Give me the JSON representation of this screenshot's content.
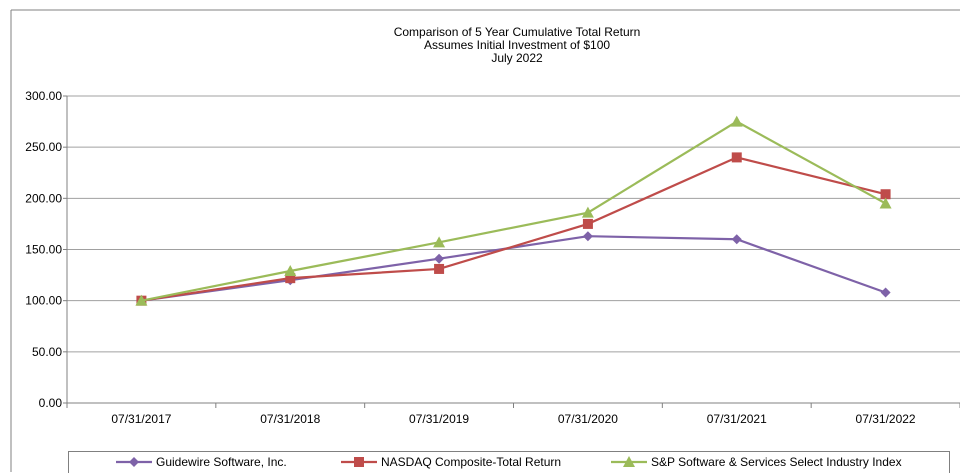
{
  "chart_data": {
    "type": "line",
    "title": [
      "Comparison of 5 Year Cumulative Total Return",
      "Assumes Initial Investment of $100",
      "July 2022"
    ],
    "xlabel": "",
    "ylabel": "",
    "categories": [
      "07/31/2017",
      "07/31/2018",
      "07/31/2019",
      "07/31/2020",
      "07/31/2021",
      "07/31/2022"
    ],
    "ylim": [
      0,
      300
    ],
    "yticks": [
      "0.00",
      "50.00",
      "100.00",
      "150.00",
      "200.00",
      "250.00",
      "300.00"
    ],
    "grid": true,
    "legend_position": "bottom",
    "series": [
      {
        "name": "Guidewire Software, Inc.",
        "color": "#7e62a8",
        "marker": "diamond",
        "values": [
          100,
          120,
          141,
          163,
          160,
          108
        ]
      },
      {
        "name": "NASDAQ Composite-Total Return",
        "color": "#bf4c4a",
        "marker": "square",
        "values": [
          100,
          122,
          131,
          175,
          240,
          204
        ]
      },
      {
        "name": "S&P Software & Services Select Industry Index",
        "color": "#9bbb59",
        "marker": "triangle",
        "values": [
          100,
          129,
          157,
          186,
          275,
          195
        ]
      }
    ]
  }
}
